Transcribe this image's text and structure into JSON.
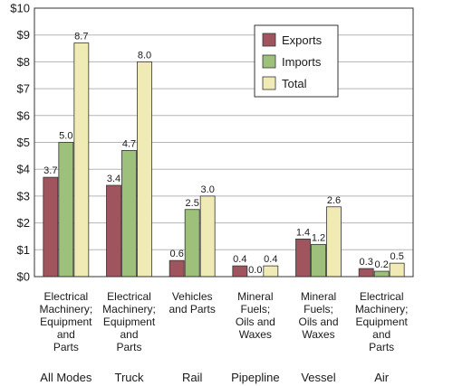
{
  "chart_data": {
    "type": "bar",
    "ylim": [
      0,
      10
    ],
    "yticks": [
      "$0",
      "$1",
      "$2",
      "$3",
      "$4",
      "$5",
      "$6",
      "$7",
      "$8",
      "$9",
      "$10"
    ],
    "grid": true,
    "legend_position": "top-right",
    "groups": [
      {
        "mode": "All Modes",
        "category": [
          "Electrical",
          "Machinery;",
          "Equipment",
          "and",
          "Parts"
        ]
      },
      {
        "mode": "Truck",
        "category": [
          "Electrical",
          "Machinery;",
          "Equipment",
          "and",
          "Parts"
        ]
      },
      {
        "mode": "Rail",
        "category": [
          "Vehicles",
          "and Parts"
        ]
      },
      {
        "mode": "Pipepline",
        "category": [
          "Mineral",
          "Fuels;",
          "Oils and",
          "Waxes"
        ]
      },
      {
        "mode": "Vessel",
        "category": [
          "Mineral",
          "Fuels;",
          "Oils and",
          "Waxes"
        ]
      },
      {
        "mode": "Air",
        "category": [
          "Electrical",
          "Machinery;",
          "Equipment",
          "and",
          "Parts"
        ]
      }
    ],
    "series": [
      {
        "name": "Exports",
        "color": "#a0555e",
        "values": [
          3.7,
          3.4,
          0.6,
          0.4,
          1.4,
          0.3
        ],
        "labels": [
          "3.7",
          "3.4",
          "0.6",
          "0.4",
          "1.4",
          "0.3"
        ]
      },
      {
        "name": "Imports",
        "color": "#9dc17a",
        "values": [
          5.0,
          4.7,
          2.5,
          0.0,
          1.2,
          0.2
        ],
        "labels": [
          "5.0",
          "4.7",
          "2.5",
          "0.0",
          "1.2",
          "0.2"
        ]
      },
      {
        "name": "Total",
        "color": "#f0eab4",
        "values": [
          8.7,
          8.0,
          3.0,
          0.4,
          2.6,
          0.5
        ],
        "labels": [
          "8.7",
          "8.0",
          "3.0",
          "0.4",
          "2.6",
          "0.5"
        ]
      }
    ]
  }
}
